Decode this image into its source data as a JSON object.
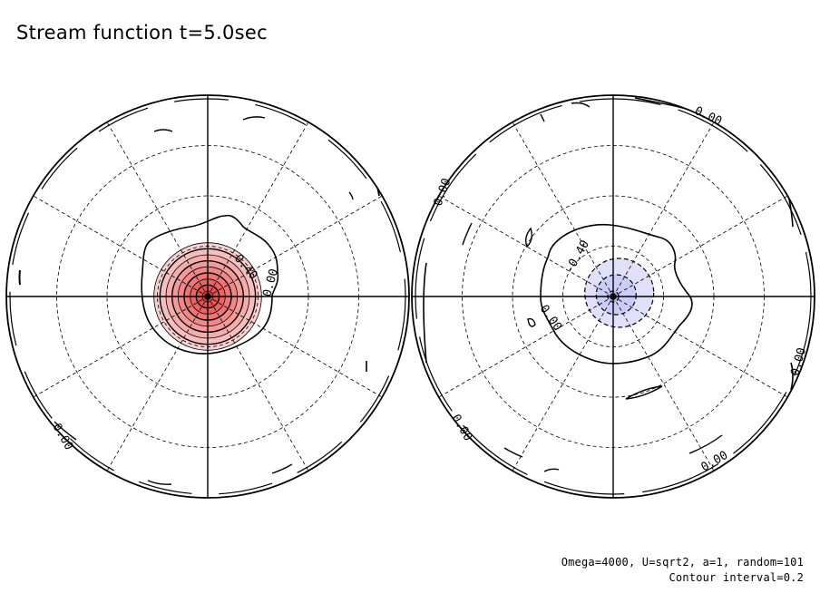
{
  "title": "Stream function t=5.0sec",
  "footer": {
    "params": "Omega=4000, U=sqrt2, a=1, random=101",
    "contour_interval": "Contour interval=0.2"
  },
  "colors": {
    "positive_fill": "#e8403f",
    "negative_fill": "#b8b8f6",
    "line": "#000000",
    "background": "#ffffff"
  },
  "chart_data": [
    {
      "type": "contour",
      "projection": "polar",
      "hemisphere": "north",
      "field": "stream function",
      "center_extremum": 1.8,
      "contour_levels": [
        0.0,
        0.2,
        0.4,
        0.6,
        0.8,
        1.0,
        1.2,
        1.4,
        1.6,
        1.8
      ],
      "contour_labels": [
        "0.40",
        "0.00"
      ],
      "fill": "positive"
    },
    {
      "type": "contour",
      "projection": "polar",
      "hemisphere": "south",
      "field": "stream function",
      "center_extremum": -0.6,
      "contour_levels": [
        -0.6,
        -0.4,
        -0.2,
        0.0
      ],
      "contour_labels": [
        "-0.40",
        "0.00",
        "0.00",
        "0.00",
        "0.00"
      ],
      "fill": "negative"
    }
  ]
}
